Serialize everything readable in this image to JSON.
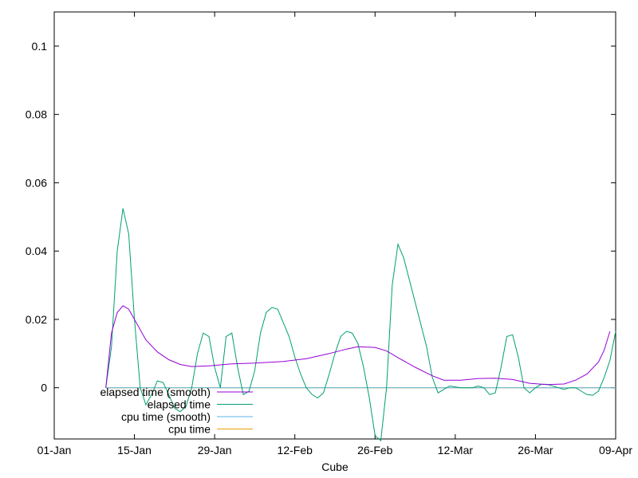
{
  "chart_data": {
    "type": "line",
    "title": "",
    "xlabel": "Cube",
    "ylabel": "",
    "x_ticks": [
      "01-Jan",
      "15-Jan",
      "29-Jan",
      "12-Feb",
      "26-Feb",
      "12-Mar",
      "26-Mar",
      "09-Apr"
    ],
    "y_ticks": [
      "0",
      "0.02",
      "0.04",
      "0.06",
      "0.08",
      "0.1"
    ],
    "xlim": [
      "2022-01-01",
      "2022-04-09"
    ],
    "ylim": [
      -0.015,
      0.11
    ],
    "grid": false,
    "legend_position": "bottom-left",
    "series": [
      {
        "name": "elapsed time (smooth)",
        "color": "#9400d3",
        "points": [
          [
            "2022-01-10",
            0.0
          ],
          [
            "2022-01-11",
            0.016
          ],
          [
            "2022-01-12",
            0.022
          ],
          [
            "2022-01-13",
            0.024
          ],
          [
            "2022-01-14",
            0.023
          ],
          [
            "2022-01-15",
            0.02
          ],
          [
            "2022-01-17",
            0.014
          ],
          [
            "2022-01-19",
            0.0105
          ],
          [
            "2022-01-21",
            0.0082
          ],
          [
            "2022-01-23",
            0.0068
          ],
          [
            "2022-01-25",
            0.0062
          ],
          [
            "2022-01-28",
            0.0064
          ],
          [
            "2022-02-01",
            0.007
          ],
          [
            "2022-02-05",
            0.0072
          ],
          [
            "2022-02-10",
            0.0077
          ],
          [
            "2022-02-14",
            0.0085
          ],
          [
            "2022-02-18",
            0.01
          ],
          [
            "2022-02-21",
            0.0113
          ],
          [
            "2022-02-23",
            0.012
          ],
          [
            "2022-02-26",
            0.0118
          ],
          [
            "2022-02-28",
            0.0108
          ],
          [
            "2022-03-02",
            0.0088
          ],
          [
            "2022-03-05",
            0.006
          ],
          [
            "2022-03-08",
            0.0035
          ],
          [
            "2022-03-10",
            0.0022
          ],
          [
            "2022-03-13",
            0.0022
          ],
          [
            "2022-03-16",
            0.0027
          ],
          [
            "2022-03-19",
            0.0028
          ],
          [
            "2022-03-22",
            0.0024
          ],
          [
            "2022-03-25",
            0.0013
          ],
          [
            "2022-03-28",
            0.0009
          ],
          [
            "2022-03-31",
            0.0011
          ],
          [
            "2022-04-02",
            0.0022
          ],
          [
            "2022-04-04",
            0.004
          ],
          [
            "2022-04-06",
            0.0075
          ],
          [
            "2022-04-07",
            0.011
          ],
          [
            "2022-04-08",
            0.0165
          ]
        ]
      },
      {
        "name": "elapsed time",
        "color": "#009e73",
        "points": [
          [
            "2022-01-10",
            0.0
          ],
          [
            "2022-01-11",
            0.012
          ],
          [
            "2022-01-12",
            0.04
          ],
          [
            "2022-01-13",
            0.0525
          ],
          [
            "2022-01-14",
            0.045
          ],
          [
            "2022-01-15",
            0.02
          ],
          [
            "2022-01-16",
            0.0
          ],
          [
            "2022-01-17",
            -0.005
          ],
          [
            "2022-01-18",
            -0.002
          ],
          [
            "2022-01-19",
            0.002
          ],
          [
            "2022-01-20",
            0.0015
          ],
          [
            "2022-01-21",
            -0.002
          ],
          [
            "2022-01-22",
            -0.006
          ],
          [
            "2022-01-23",
            -0.007
          ],
          [
            "2022-01-24",
            -0.0055
          ],
          [
            "2022-01-25",
            0.0
          ],
          [
            "2022-01-26",
            0.01
          ],
          [
            "2022-01-27",
            0.016
          ],
          [
            "2022-01-28",
            0.015
          ],
          [
            "2022-01-29",
            0.006
          ],
          [
            "2022-01-30",
            0.0
          ],
          [
            "2022-01-31",
            0.015
          ],
          [
            "2022-02-01",
            0.016
          ],
          [
            "2022-02-02",
            0.006
          ],
          [
            "2022-02-03",
            -0.002
          ],
          [
            "2022-02-04",
            -0.001
          ],
          [
            "2022-02-05",
            0.005
          ],
          [
            "2022-02-06",
            0.016
          ],
          [
            "2022-02-07",
            0.022
          ],
          [
            "2022-02-08",
            0.0235
          ],
          [
            "2022-02-09",
            0.023
          ],
          [
            "2022-02-10",
            0.019
          ],
          [
            "2022-02-11",
            0.015
          ],
          [
            "2022-02-12",
            0.009
          ],
          [
            "2022-02-13",
            0.004
          ],
          [
            "2022-02-14",
            0.0
          ],
          [
            "2022-02-15",
            -0.002
          ],
          [
            "2022-02-16",
            -0.003
          ],
          [
            "2022-02-17",
            -0.0015
          ],
          [
            "2022-02-18",
            0.004
          ],
          [
            "2022-02-19",
            0.01
          ],
          [
            "2022-02-20",
            0.015
          ],
          [
            "2022-02-21",
            0.0165
          ],
          [
            "2022-02-22",
            0.016
          ],
          [
            "2022-02-23",
            0.013
          ],
          [
            "2022-02-24",
            0.006
          ],
          [
            "2022-02-25",
            -0.003
          ],
          [
            "2022-02-26",
            -0.014
          ],
          [
            "2022-02-27",
            -0.0155
          ],
          [
            "2022-02-28",
            0.0
          ],
          [
            "2022-03-01",
            0.03
          ],
          [
            "2022-03-02",
            0.042
          ],
          [
            "2022-03-03",
            0.038
          ],
          [
            "2022-03-05",
            0.025
          ],
          [
            "2022-03-07",
            0.012
          ],
          [
            "2022-03-08",
            0.003
          ],
          [
            "2022-03-09",
            -0.0015
          ],
          [
            "2022-03-10",
            -0.0005
          ],
          [
            "2022-03-11",
            0.0005
          ],
          [
            "2022-03-13",
            0.0
          ],
          [
            "2022-03-15",
            0.0
          ],
          [
            "2022-03-16",
            0.0005
          ],
          [
            "2022-03-17",
            0.0
          ],
          [
            "2022-03-18",
            -0.002
          ],
          [
            "2022-03-19",
            -0.0015
          ],
          [
            "2022-03-20",
            0.006
          ],
          [
            "2022-03-21",
            0.015
          ],
          [
            "2022-03-22",
            0.0155
          ],
          [
            "2022-03-23",
            0.009
          ],
          [
            "2022-03-24",
            0.0
          ],
          [
            "2022-03-25",
            -0.0015
          ],
          [
            "2022-03-26",
            0.0
          ],
          [
            "2022-03-27",
            0.001
          ],
          [
            "2022-03-28",
            0.001
          ],
          [
            "2022-03-30",
            0.0
          ],
          [
            "2022-03-31",
            -0.0005
          ],
          [
            "2022-04-01",
            0.0
          ],
          [
            "2022-04-02",
            0.0
          ],
          [
            "2022-04-03",
            -0.001
          ],
          [
            "2022-04-04",
            -0.002
          ],
          [
            "2022-04-05",
            -0.0022
          ],
          [
            "2022-04-06",
            -0.001
          ],
          [
            "2022-04-07",
            0.003
          ],
          [
            "2022-04-08",
            0.008
          ],
          [
            "2022-04-09",
            0.0165
          ]
        ]
      },
      {
        "name": "cpu time (smooth)",
        "color": "#56b4e9",
        "points": [
          [
            "2022-01-10",
            0.0
          ],
          [
            "2022-04-09",
            0.0
          ]
        ]
      },
      {
        "name": "cpu time",
        "color": "#e69f00",
        "points": [
          [
            "2022-01-10",
            0.0
          ],
          [
            "2022-04-09",
            0.0
          ]
        ]
      }
    ]
  }
}
